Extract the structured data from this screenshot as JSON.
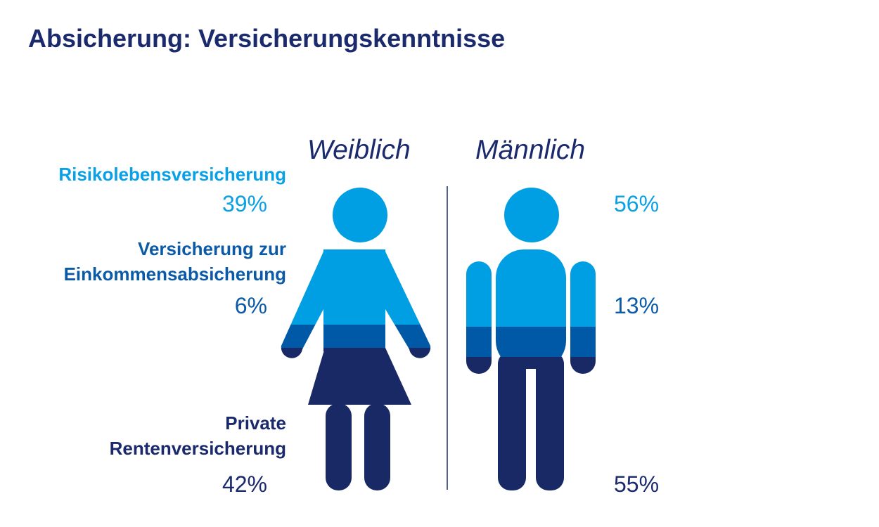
{
  "title": "Absicherung: Versicherungskenntnisse",
  "colors": {
    "risiko": "#009fe3",
    "einkommen": "#0059a7",
    "rente": "#182966",
    "divider": "#1a2a6c"
  },
  "chart_data": {
    "type": "table",
    "title": "Absicherung: Versicherungskenntnisse",
    "columns": [
      "Weiblich",
      "Männlich"
    ],
    "categories": [
      "Risikolebensversicherung",
      "Versicherung zur Einkommensabsicherung",
      "Private Rentenversicherung"
    ],
    "label_lines": [
      [
        "Risikolebensversicherung"
      ],
      [
        "Versicherung zur",
        "Einkommensabsicherung"
      ],
      [
        "Private",
        "Rentenversicherung"
      ]
    ],
    "series": [
      {
        "name": "Weiblich",
        "values": [
          39,
          6,
          42
        ],
        "labels": [
          "39%",
          "6%",
          "42%"
        ]
      },
      {
        "name": "Männlich",
        "values": [
          56,
          13,
          55
        ],
        "labels": [
          "56%",
          "13%",
          "55%"
        ]
      }
    ]
  }
}
